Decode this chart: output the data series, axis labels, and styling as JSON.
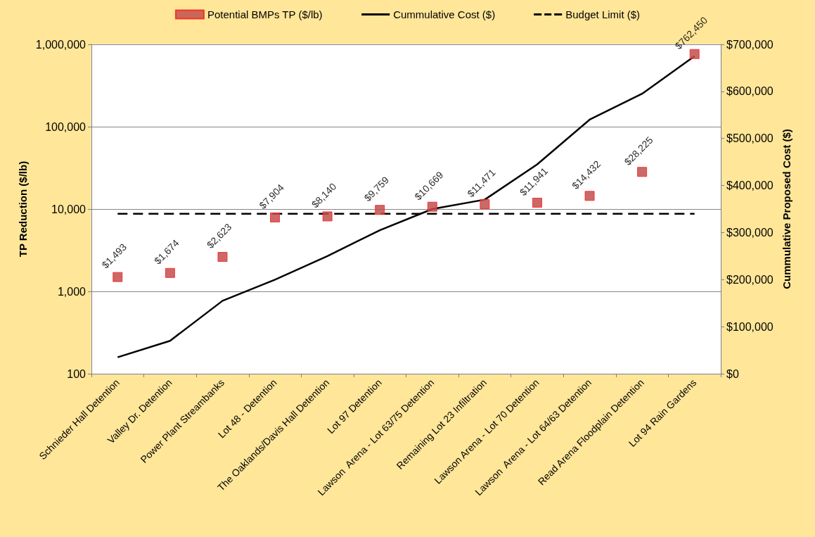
{
  "chart_data": {
    "type": "line",
    "categories": [
      "Schnieder Hall Detention",
      "Valley Dr. Detention",
      "Power Plant Streambanks",
      "Lot 48 - Detention",
      "The Oaklands/Davis Hall Detention",
      "Lot 97 Detention",
      "Lawson  Arena - Lot 63/75 Detention",
      "Remaining Lot 23 Infiltration",
      "Lawson Arena - Lot 70 Detention",
      "Lawson  Arena - Lot 64/63 Detention",
      "Read Arena Floodplain Detention",
      "Lot 94 Rain Gardens"
    ],
    "ylabel": "TP Reduction ($/lb)",
    "y2label": "Cummulative Proposed Cost ($)",
    "ylim": [
      100,
      1000000
    ],
    "yticks": [
      {
        "value": 100,
        "label": "100"
      },
      {
        "value": 1000,
        "label": "1,000"
      },
      {
        "value": 10000,
        "label": "10,000"
      },
      {
        "value": 100000,
        "label": "100,000"
      },
      {
        "value": 1000000,
        "label": "1,000,000"
      }
    ],
    "y2lim": [
      0,
      700000
    ],
    "y2ticks": [
      {
        "value": 0,
        "label": "$0"
      },
      {
        "value": 100000,
        "label": "$100,000"
      },
      {
        "value": 200000,
        "label": "$200,000"
      },
      {
        "value": 300000,
        "label": "$300,000"
      },
      {
        "value": 400000,
        "label": "$400,000"
      },
      {
        "value": 500000,
        "label": "$500,000"
      },
      {
        "value": 600000,
        "label": "$600,000"
      },
      {
        "value": 700000,
        "label": "$700,000"
      }
    ],
    "log": "y",
    "grid": "y",
    "legend": "top",
    "series": [
      {
        "name": "Potential BMPs TP ($/lb)",
        "type": "scatter",
        "marker": "square",
        "color": "#c0504d",
        "values": [
          1493,
          1674,
          2623,
          7904,
          8140,
          9759,
          10669,
          11471,
          11941,
          14432,
          28225,
          762450
        ],
        "value_labels": [
          "$1,493",
          "$1,674",
          "$2,623",
          "$7,904",
          "$8,140",
          "$9,759",
          "$10,669",
          "$11,471",
          "$11,941",
          "$14,432",
          "$28,225",
          "$762,450"
        ]
      },
      {
        "name": "Cummulative Cost ($)",
        "axis": "y2",
        "marker": "none",
        "line_style": "solid",
        "color": "#000000",
        "values": [
          35000,
          70000,
          155000,
          200000,
          250000,
          305000,
          350000,
          370000,
          445000,
          540000,
          595000,
          675000
        ]
      },
      {
        "name": "Budget Limit ($)",
        "axis": "y2",
        "marker": "none",
        "line_style": "dashed",
        "color": "#000000",
        "values": [
          340000,
          340000,
          340000,
          340000,
          340000,
          340000,
          340000,
          340000,
          340000,
          340000,
          340000,
          340000
        ]
      }
    ]
  }
}
